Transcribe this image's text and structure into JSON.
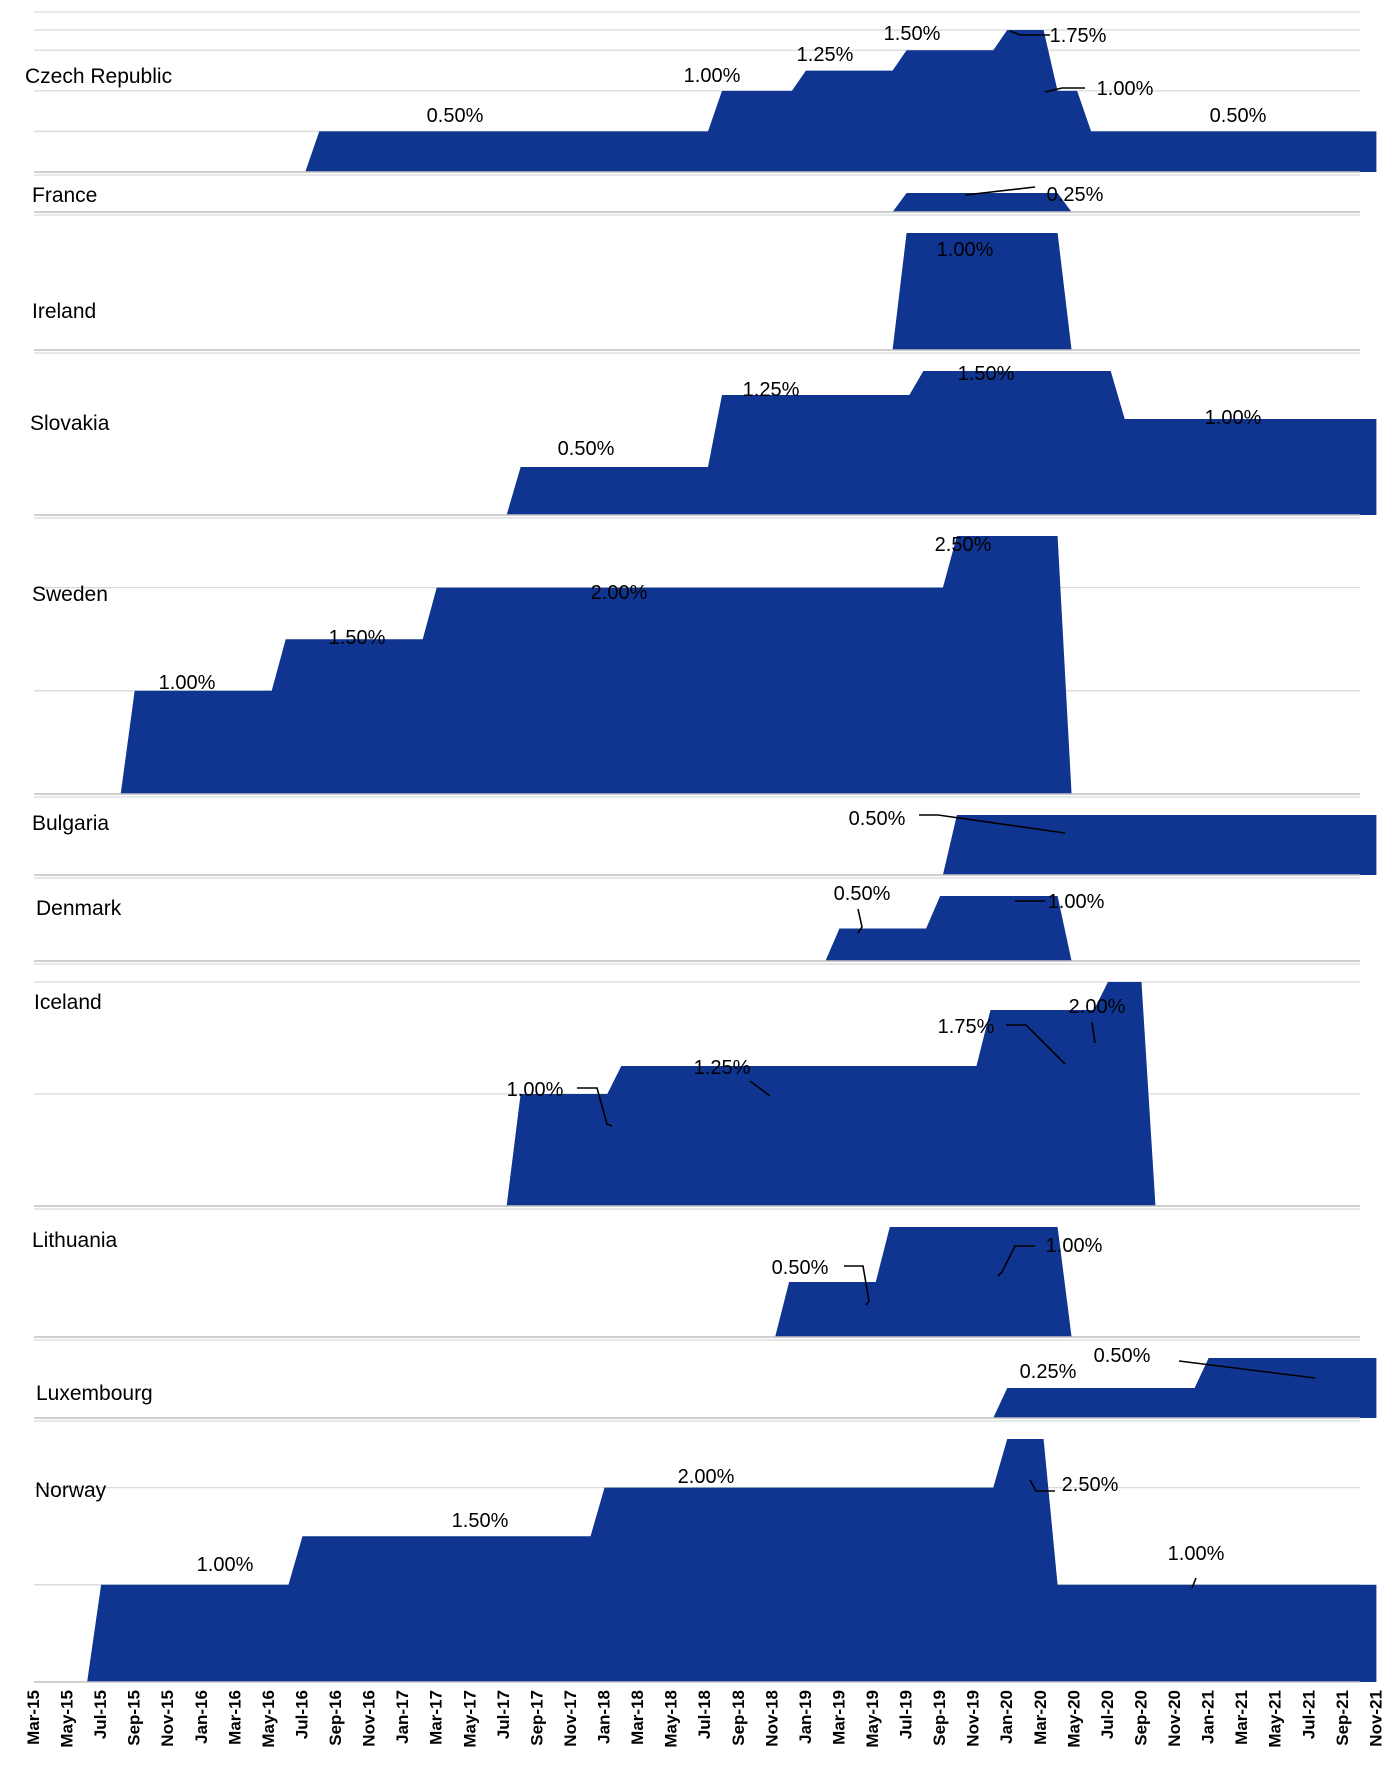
{
  "colors": {
    "area": "#0f3591",
    "grid": "#d9d9d9",
    "text": "#000000"
  },
  "chart_data": {
    "type": "area",
    "title": "",
    "x_ticks": [
      "Mar-15",
      "May-15",
      "Jul-15",
      "Sep-15",
      "Nov-15",
      "Jan-16",
      "Mar-16",
      "May-16",
      "Jul-16",
      "Sep-16",
      "Nov-16",
      "Jan-17",
      "Mar-17",
      "May-17",
      "Jul-17",
      "Sep-17",
      "Nov-17",
      "Jan-18",
      "Mar-18",
      "May-18",
      "Jul-18",
      "Sep-18",
      "Nov-18",
      "Jan-19",
      "Mar-19",
      "May-19",
      "Jul-19",
      "Sep-19",
      "Nov-19",
      "Jan-20",
      "Mar-20",
      "May-20",
      "Jul-20",
      "Sep-20",
      "Nov-20",
      "Jan-21",
      "Mar-21",
      "May-21",
      "Jul-21",
      "Sep-21",
      "Nov-21"
    ],
    "value_unit": "%",
    "panels": [
      {
        "country": "Czech Republic",
        "y_max": 1.75,
        "y_grid": [
          0.5,
          1.0,
          1.5,
          1.75
        ],
        "steps": [
          {
            "start": "Aug-16",
            "value": 0.5
          },
          {
            "start": "Aug-18",
            "value": 1.0
          },
          {
            "start": "Jan-19",
            "value": 1.25
          },
          {
            "start": "Jul-19",
            "value": 1.5
          },
          {
            "start": "Jan-20",
            "value": 1.75
          },
          {
            "start": "Apr-20",
            "value": 1.0
          },
          {
            "start": "Jun-20",
            "value": 0.5
          }
        ],
        "end": "Nov-21",
        "labels": [
          "0.50%",
          "1.00%",
          "1.25%",
          "1.50%",
          "1.75%",
          "1.00%",
          "0.50%"
        ]
      },
      {
        "country": "France",
        "y_max": 0.25,
        "y_grid": [],
        "steps": [
          {
            "start": "Jul-19",
            "value": 0.25
          }
        ],
        "end": "Apr-20",
        "labels": [
          "0.25%"
        ]
      },
      {
        "country": "Ireland",
        "y_max": 1.0,
        "y_grid": [],
        "steps": [
          {
            "start": "Jul-19",
            "value": 1.0
          }
        ],
        "end": "Apr-20",
        "labels": [
          "1.00%"
        ]
      },
      {
        "country": "Slovakia",
        "y_max": 1.5,
        "y_grid": [],
        "steps": [
          {
            "start": "Aug-17",
            "value": 0.5
          },
          {
            "start": "Aug-18",
            "value": 1.25
          },
          {
            "start": "Aug-19",
            "value": 1.5
          },
          {
            "start": "Aug-20",
            "value": 1.0
          }
        ],
        "end": "Nov-21",
        "labels": [
          "0.50%",
          "1.25%",
          "1.50%",
          "1.00%"
        ]
      },
      {
        "country": "Sweden",
        "y_max": 2.5,
        "y_grid": [
          1.0,
          2.0
        ],
        "steps": [
          {
            "start": "Sep-15",
            "value": 1.0
          },
          {
            "start": "Jun-16",
            "value": 1.5
          },
          {
            "start": "Mar-17",
            "value": 2.0
          },
          {
            "start": "Oct-19",
            "value": 2.5
          }
        ],
        "end": "Apr-20",
        "labels": [
          "1.00%",
          "1.50%",
          "2.00%",
          "2.50%"
        ]
      },
      {
        "country": "Bulgaria",
        "y_max": 0.5,
        "y_grid": [],
        "steps": [
          {
            "start": "Oct-19",
            "value": 0.5
          }
        ],
        "end": "Nov-21",
        "labels": [
          "0.50%"
        ]
      },
      {
        "country": "Denmark",
        "y_max": 1.0,
        "y_grid": [],
        "steps": [
          {
            "start": "Mar-19",
            "value": 0.5
          },
          {
            "start": "Sep-19",
            "value": 1.0
          }
        ],
        "end": "Apr-20",
        "labels": [
          "0.50%",
          "1.00%"
        ]
      },
      {
        "country": "Iceland",
        "y_max": 2.0,
        "y_grid": [
          1.0,
          2.0
        ],
        "steps": [
          {
            "start": "Aug-17",
            "value": 1.0
          },
          {
            "start": "Feb-18",
            "value": 1.25
          },
          {
            "start": "Dec-19",
            "value": 1.75
          },
          {
            "start": "Jul-20",
            "value": 2.0
          }
        ],
        "end": "Sep-20",
        "labels": [
          "1.00%",
          "1.25%",
          "1.75%",
          "2.00%"
        ]
      },
      {
        "country": "Lithuania",
        "y_max": 1.0,
        "y_grid": [],
        "steps": [
          {
            "start": "Dec-18",
            "value": 0.5
          },
          {
            "start": "Jun-19",
            "value": 1.0
          }
        ],
        "end": "Apr-20",
        "labels": [
          "0.50%",
          "1.00%"
        ]
      },
      {
        "country": "Luxembourg",
        "y_max": 0.5,
        "y_grid": [],
        "steps": [
          {
            "start": "Jan-20",
            "value": 0.25
          },
          {
            "start": "Jan-21",
            "value": 0.5
          }
        ],
        "end": "Nov-21",
        "labels": [
          "0.25%",
          "0.50%"
        ]
      },
      {
        "country": "Norway",
        "y_max": 2.5,
        "y_grid": [
          1.0,
          2.0
        ],
        "steps": [
          {
            "start": "Jul-15",
            "value": 1.0
          },
          {
            "start": "Jul-16",
            "value": 1.5
          },
          {
            "start": "Jan-18",
            "value": 2.0
          },
          {
            "start": "Jan-20",
            "value": 2.5
          },
          {
            "start": "Apr-20",
            "value": 1.0
          }
        ],
        "end": "Nov-21",
        "labels": [
          "1.00%",
          "1.50%",
          "2.00%",
          "2.50%",
          "1.00%"
        ]
      }
    ]
  }
}
